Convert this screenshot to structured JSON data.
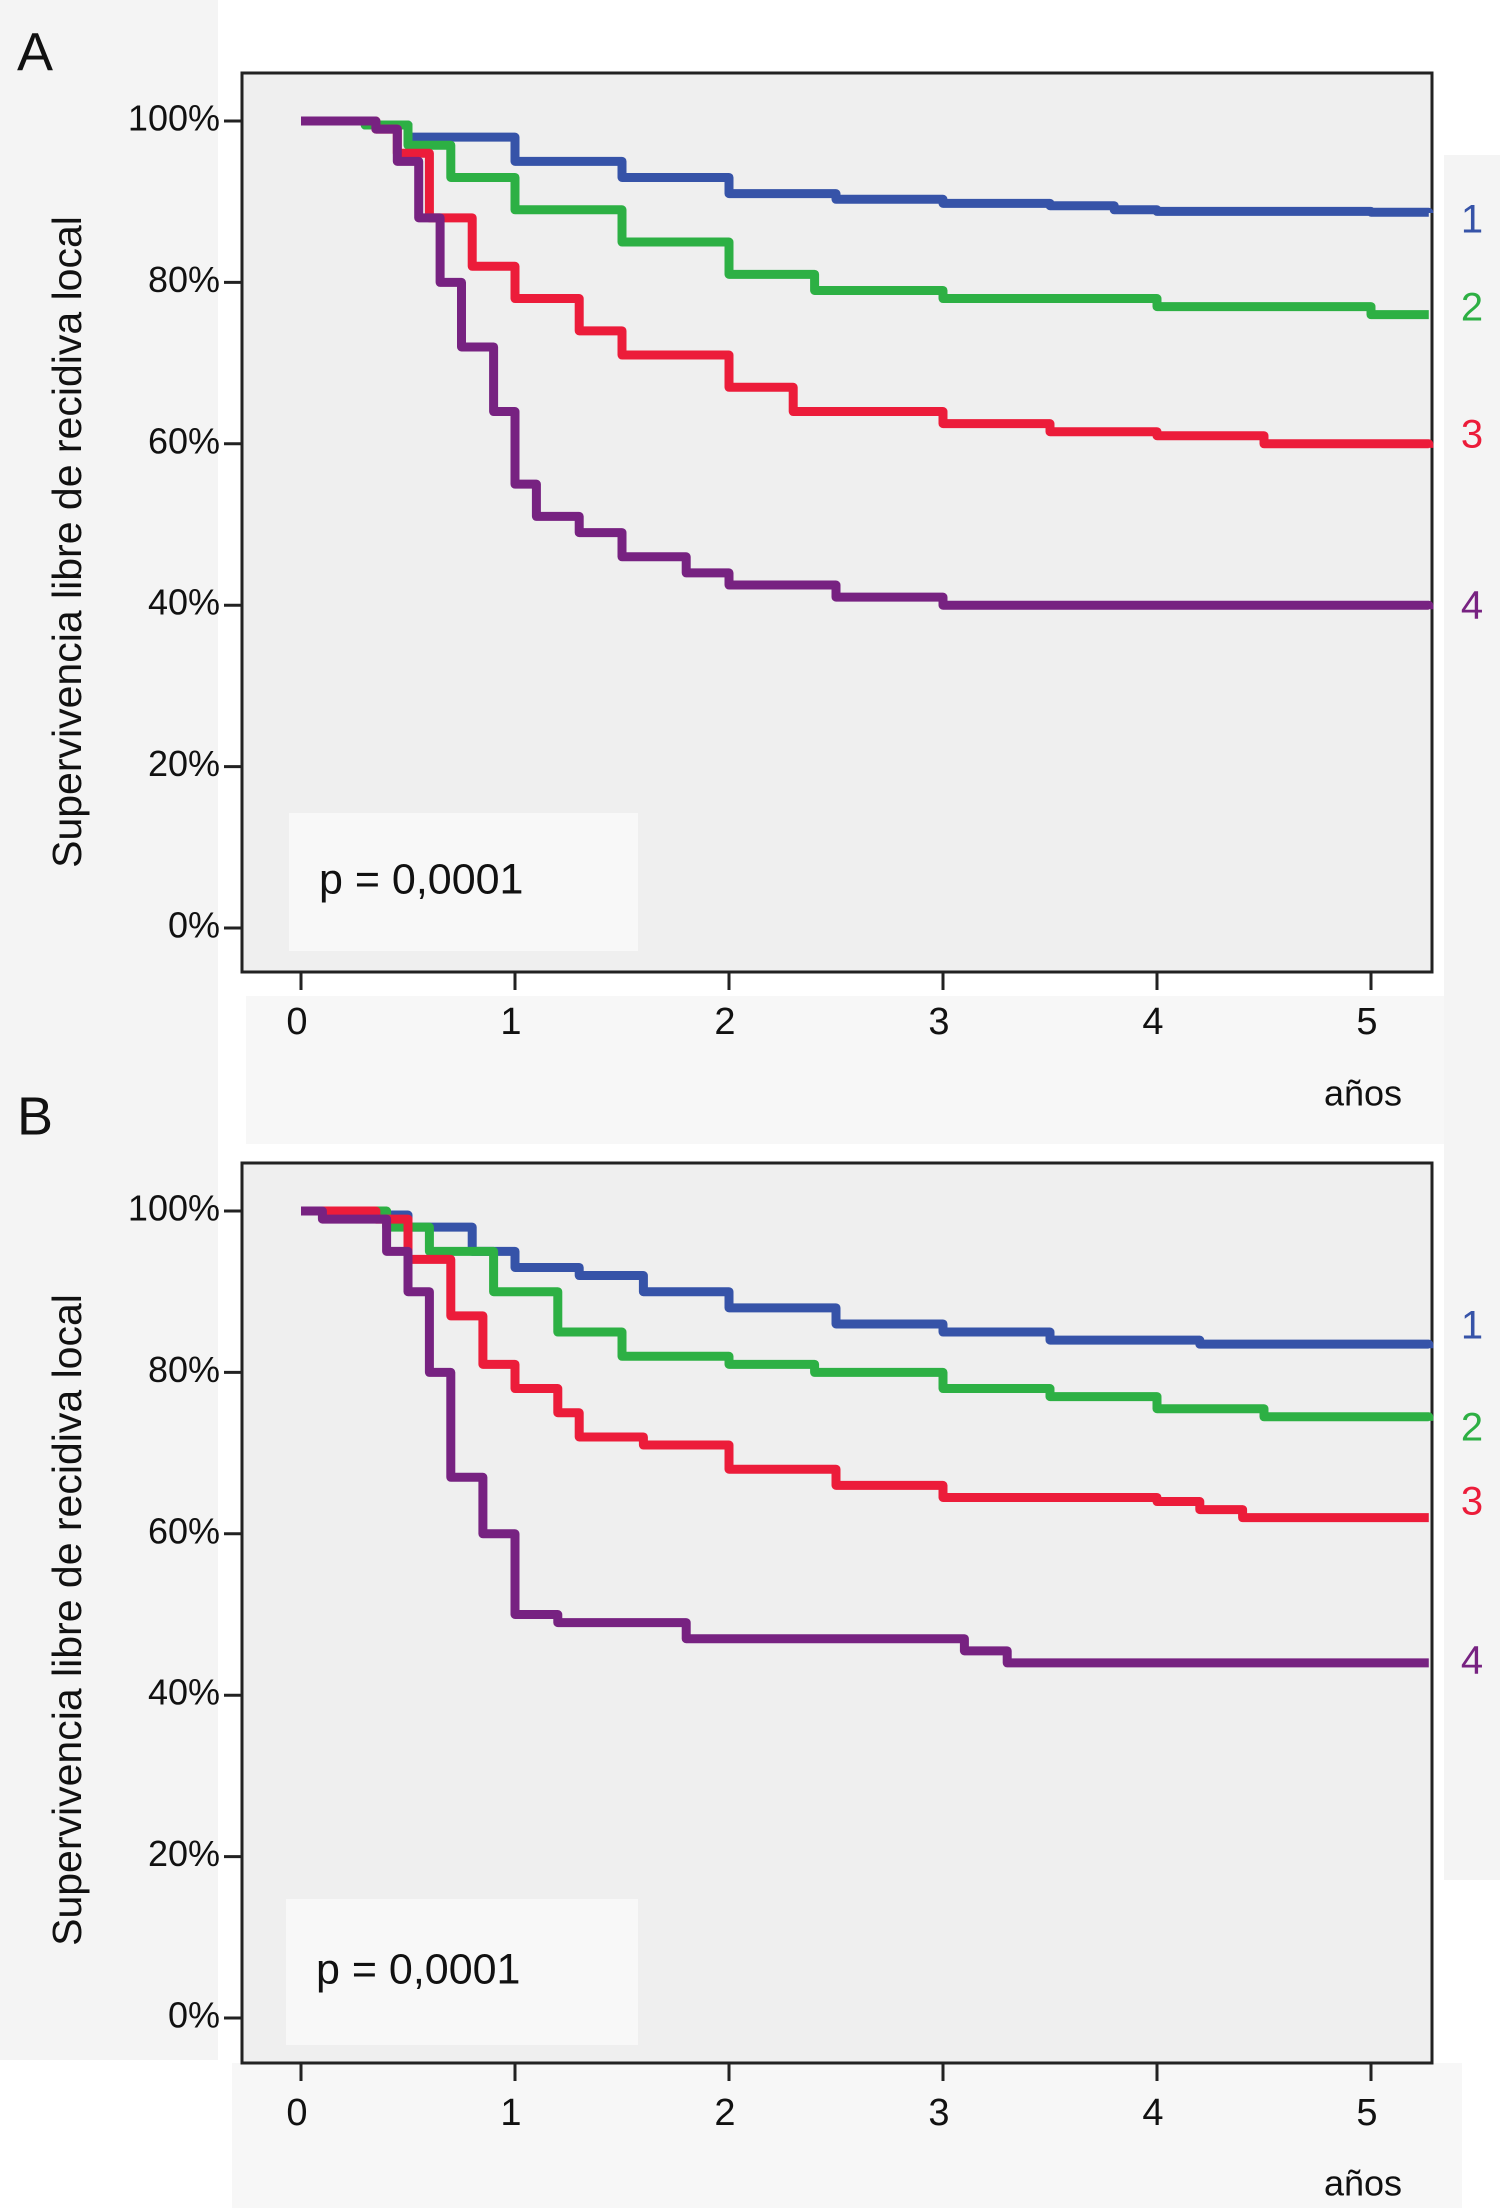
{
  "chart_data": [
    {
      "panel_label": "A",
      "type": "line",
      "subtype": "kaplan-meier",
      "ylabel": "Supervivencia libre de recidiva local",
      "xlabel": "años",
      "xlim": [
        0,
        5.27
      ],
      "ylim": [
        0,
        100
      ],
      "xticks": [
        "0",
        "1",
        "2",
        "3",
        "4",
        "5"
      ],
      "yticks": [
        "0%",
        "20%",
        "40%",
        "60%",
        "80%",
        "100%"
      ],
      "annotation": "p = 0,0001",
      "series": [
        {
          "name": "1",
          "color": "#3653a8",
          "x": [
            0,
            0.3,
            0.5,
            1,
            1.5,
            2,
            2.5,
            3,
            3.5,
            3.8,
            4,
            5,
            5.27
          ],
          "y": [
            100,
            99.5,
            98,
            95,
            93,
            91,
            90.3,
            89.8,
            89.5,
            89,
            88.8,
            88.7,
            88.6
          ]
        },
        {
          "name": "2",
          "color": "#2db044",
          "x": [
            0,
            0.3,
            0.5,
            0.7,
            1,
            1.5,
            2,
            2.4,
            3,
            4,
            5,
            5.27
          ],
          "y": [
            100,
            99.5,
            97,
            93,
            89,
            85,
            81,
            79,
            78,
            77,
            76,
            76
          ]
        },
        {
          "name": "3",
          "color": "#ec1c3a",
          "x": [
            0,
            0.35,
            0.45,
            0.6,
            0.8,
            1,
            1.3,
            1.5,
            2,
            2.3,
            3,
            3.5,
            4,
            4.5,
            5.27
          ],
          "y": [
            100,
            99,
            96,
            88,
            82,
            78,
            74,
            71,
            67,
            64,
            62.5,
            61.5,
            61,
            60,
            59.5
          ]
        },
        {
          "name": "4",
          "color": "#772281",
          "x": [
            0,
            0.35,
            0.45,
            0.55,
            0.65,
            0.75,
            0.9,
            1,
            1.1,
            1.3,
            1.5,
            1.8,
            2,
            2.5,
            3,
            5,
            5.27
          ],
          "y": [
            100,
            99,
            95,
            88,
            80,
            72,
            64,
            55,
            51,
            49,
            46,
            44,
            42.5,
            41,
            40,
            40,
            39.5
          ]
        }
      ]
    },
    {
      "panel_label": "B",
      "type": "line",
      "subtype": "kaplan-meier",
      "ylabel": "Supervivencia libre de recidiva local",
      "xlabel": "años",
      "xlim": [
        0,
        5.27
      ],
      "ylim": [
        0,
        100
      ],
      "xticks": [
        "0",
        "1",
        "2",
        "3",
        "4",
        "5"
      ],
      "yticks": [
        "0%",
        "20%",
        "40%",
        "60%",
        "80%",
        "100%"
      ],
      "annotation": "p = 0,0001",
      "series": [
        {
          "name": "1",
          "color": "#3653a8",
          "x": [
            0,
            0.3,
            0.5,
            0.8,
            1,
            1.3,
            1.6,
            2,
            2.5,
            3,
            3.5,
            4,
            4.2,
            5.27
          ],
          "y": [
            100,
            99.5,
            98,
            95,
            93,
            92,
            90,
            88,
            86,
            85,
            84,
            84,
            83.5,
            83
          ]
        },
        {
          "name": "2",
          "color": "#2db044",
          "x": [
            0,
            0.4,
            0.6,
            0.9,
            1.2,
            1.5,
            2,
            2.4,
            3,
            3.5,
            4,
            4.5,
            5.27
          ],
          "y": [
            100,
            98,
            95,
            90,
            85,
            82,
            81,
            80,
            78,
            77,
            75.5,
            74.5,
            74
          ]
        },
        {
          "name": "3",
          "color": "#ec1c3a",
          "x": [
            0,
            0.35,
            0.5,
            0.7,
            0.85,
            1,
            1.2,
            1.3,
            1.6,
            2,
            2.5,
            3,
            3.5,
            4,
            4.2,
            4.4,
            5.27
          ],
          "y": [
            100,
            99,
            94,
            87,
            81,
            78,
            75,
            72,
            71,
            68,
            66,
            64.5,
            64.5,
            64,
            63,
            62,
            62
          ]
        },
        {
          "name": "4",
          "color": "#772281",
          "x": [
            0,
            0.1,
            0.4,
            0.5,
            0.6,
            0.7,
            0.85,
            1,
            1.2,
            1.8,
            2.2,
            3,
            3.1,
            3.3,
            5.27
          ],
          "y": [
            100,
            99,
            95,
            90,
            80,
            67,
            60,
            50,
            49,
            47,
            47,
            47,
            45.5,
            44,
            44
          ]
        }
      ]
    }
  ]
}
